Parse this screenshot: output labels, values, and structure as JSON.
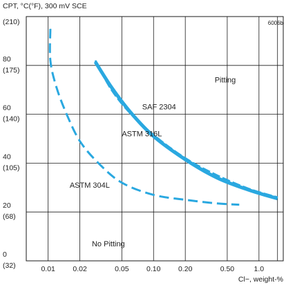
{
  "chart_data": {
    "type": "line",
    "title": "CPT, °C(°F), 300 mV SCE",
    "figure_id": "6006b",
    "xlabel": "Cl−, weight-%",
    "x_scale": "log",
    "xlim": [
      0.0062,
      1.7
    ],
    "ylim": [
      0,
      100
    ],
    "grid": true,
    "x_ticks": [
      {
        "value": 0.01,
        "label": "0.01"
      },
      {
        "value": 0.02,
        "label": "0.02"
      },
      {
        "value": 0.05,
        "label": "0.05"
      },
      {
        "value": 0.1,
        "label": "0.10"
      },
      {
        "value": 0.2,
        "label": "0.20"
      },
      {
        "value": 0.5,
        "label": "0.50"
      },
      {
        "value": 1.0,
        "label": "1.0"
      },
      {
        "value": 1.5,
        "label": ""
      }
    ],
    "y_ticks": [
      {
        "value": 0,
        "label_c": "0",
        "label_f": "(32)"
      },
      {
        "value": 20,
        "label_c": "20",
        "label_f": "(68)"
      },
      {
        "value": 40,
        "label_c": "40",
        "label_f": "(105)"
      },
      {
        "value": 60,
        "label_c": "60",
        "label_f": "(140)"
      },
      {
        "value": 80,
        "label_c": "80",
        "label_f": "(175)"
      },
      {
        "value": 100,
        "label_c": "",
        "label_f": "(210)"
      }
    ],
    "series": [
      {
        "name": "SAF 2304",
        "style": "solid",
        "color": "#2aa8e0",
        "points": [
          [
            0.028,
            81.5
          ],
          [
            0.04,
            71
          ],
          [
            0.06,
            61
          ],
          [
            0.1,
            51
          ],
          [
            0.2,
            41.5
          ],
          [
            0.4,
            34
          ],
          [
            0.8,
            29
          ],
          [
            1.5,
            25.5
          ]
        ]
      },
      {
        "name": "ASTM 316L",
        "style": "dashed",
        "color": "#2aa8e0",
        "points": [
          [
            0.028,
            82
          ],
          [
            0.04,
            70
          ],
          [
            0.06,
            60.5
          ],
          [
            0.1,
            51.5
          ],
          [
            0.2,
            42
          ],
          [
            0.4,
            35
          ],
          [
            0.8,
            29.5
          ],
          [
            1.5,
            26
          ]
        ]
      },
      {
        "name": "ASTM 304L",
        "style": "dashed",
        "color": "#2aa8e0",
        "points": [
          [
            0.0105,
            95
          ],
          [
            0.0105,
            82
          ],
          [
            0.012,
            71
          ],
          [
            0.015,
            60
          ],
          [
            0.02,
            49
          ],
          [
            0.03,
            40
          ],
          [
            0.05,
            32
          ],
          [
            0.1,
            27
          ],
          [
            0.2,
            25
          ],
          [
            0.4,
            23.5
          ],
          [
            0.65,
            23
          ]
        ]
      }
    ],
    "annotations": [
      {
        "text": "Pitting",
        "x": 0.38,
        "y": 73
      },
      {
        "text": "SAF 2304",
        "x": 0.078,
        "y": 62
      },
      {
        "text": "ASTM 316L",
        "x": 0.05,
        "y": 51
      },
      {
        "text": "ASTM 304L",
        "x": 0.016,
        "y": 30
      },
      {
        "text": "No Pitting",
        "x": 0.026,
        "y": 6
      }
    ]
  }
}
